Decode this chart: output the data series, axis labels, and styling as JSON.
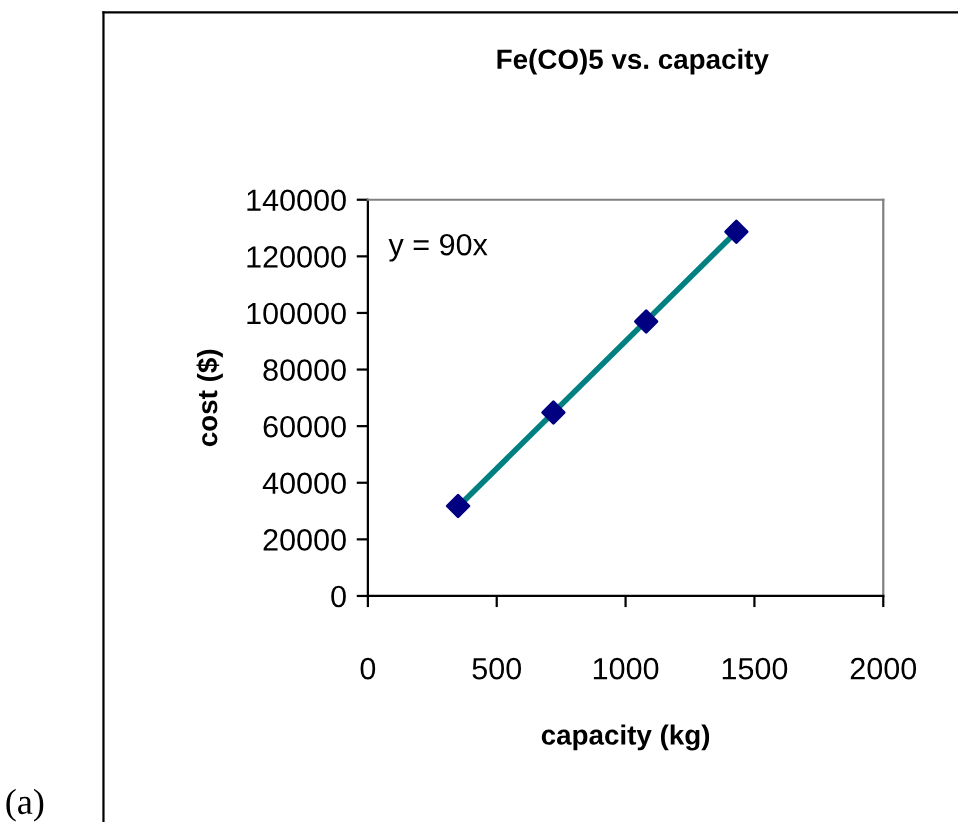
{
  "chart_data": {
    "type": "scatter",
    "title": "Fe(CO)5 vs. capacity",
    "xlabel": "capacity (kg)",
    "ylabel": "cost ($)",
    "xlim": [
      0,
      2000
    ],
    "xticks": [
      0,
      500,
      1000,
      1500,
      2000
    ],
    "ylim": [
      0,
      140000
    ],
    "yticks": [
      0,
      20000,
      40000,
      60000,
      80000,
      100000,
      120000,
      140000
    ],
    "grid": false,
    "series": [
      {
        "type": "line",
        "color": "#008080",
        "x": [
          350,
          1430
        ],
        "values": [
          31500,
          128700
        ],
        "marker": "none",
        "line_style": "solid"
      },
      {
        "color": "#000080",
        "x": [
          350,
          720,
          1080,
          1430
        ],
        "values": [
          31800,
          64800,
          97000,
          128700
        ],
        "marker": "diamond"
      }
    ],
    "annotations": [
      "y = 90x",
      "(a)"
    ]
  }
}
